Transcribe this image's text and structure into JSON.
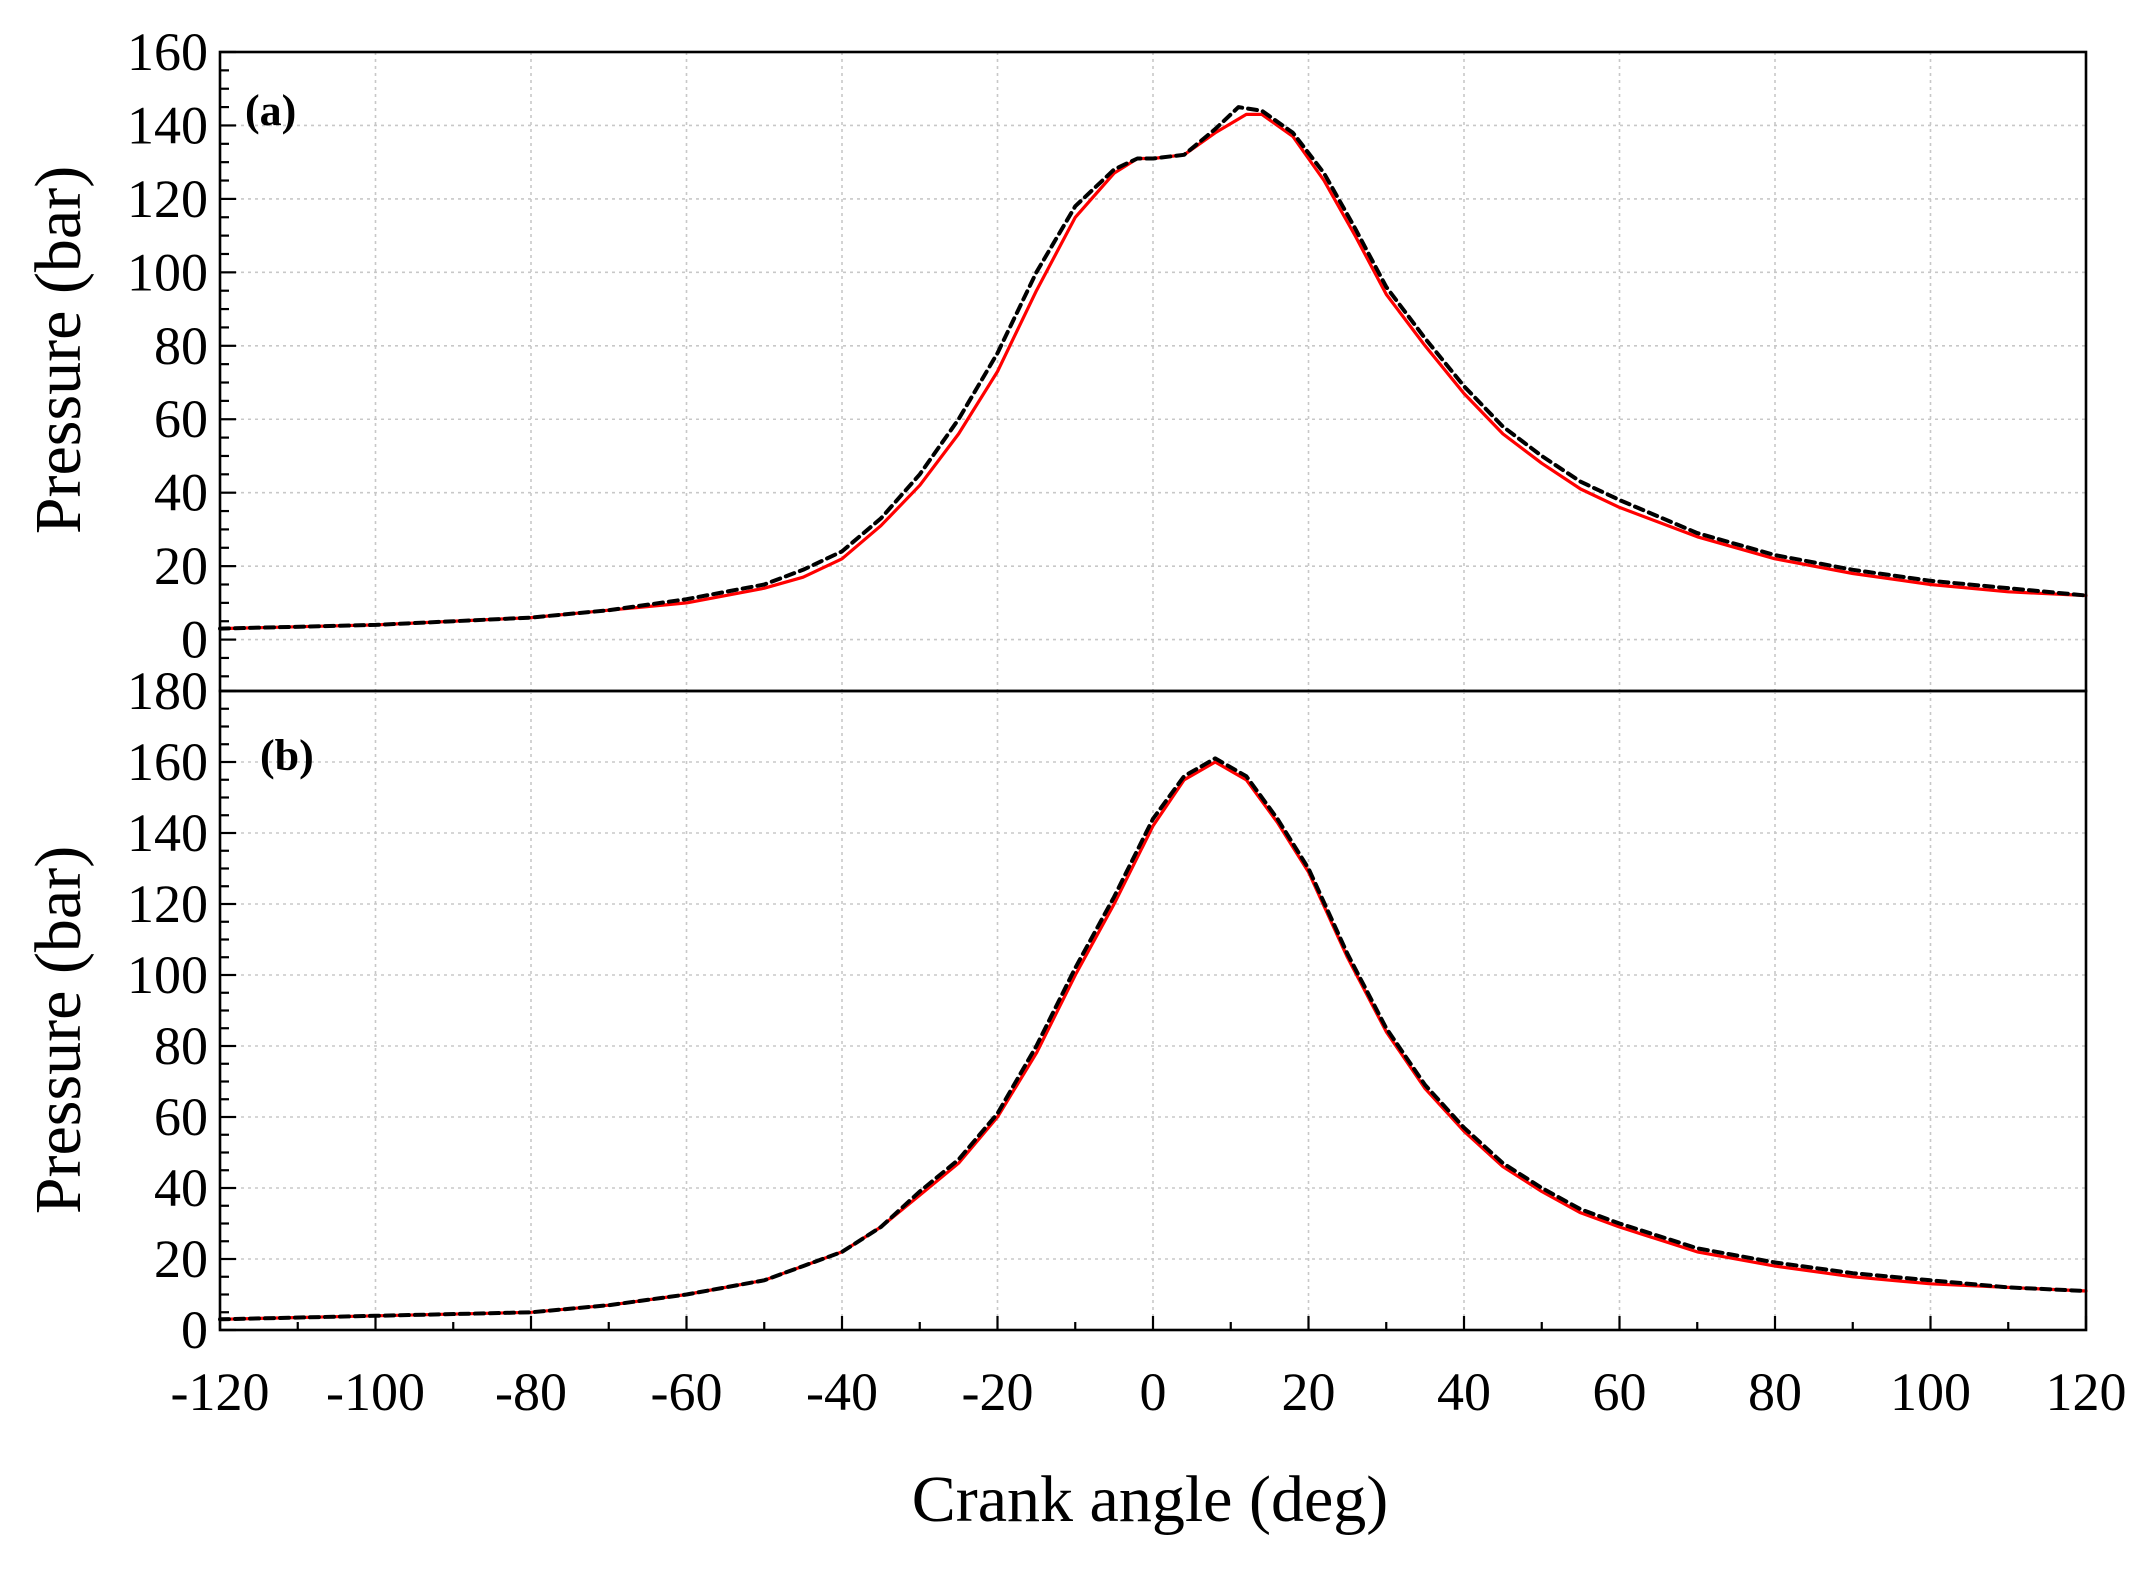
{
  "chart_data": [
    {
      "type": "line",
      "panel_label": "(a)",
      "ylabel": "Pressure (bar)",
      "xlim": [
        -120,
        120
      ],
      "ylim": [
        -14,
        160
      ],
      "yticks": [
        0,
        20,
        40,
        60,
        80,
        100,
        120,
        140,
        160
      ],
      "y_minor_step": 5,
      "grid": true,
      "series": [
        {
          "color": "#ff0000",
          "style": "solid",
          "x": [
            -120,
            -100,
            -80,
            -70,
            -60,
            -50,
            -45,
            -40,
            -35,
            -30,
            -25,
            -20,
            -15,
            -10,
            -5,
            -2,
            0,
            4,
            8,
            12,
            14,
            18,
            22,
            26,
            30,
            35,
            40,
            45,
            50,
            55,
            60,
            70,
            80,
            90,
            100,
            110,
            120
          ],
          "values": [
            3,
            4,
            6,
            8,
            10,
            14,
            17,
            22,
            31,
            42,
            56,
            73,
            95,
            115,
            127,
            131,
            131,
            132,
            138,
            143,
            143,
            137,
            125,
            110,
            94,
            80,
            67,
            56,
            48,
            41,
            36,
            28,
            22,
            18,
            15,
            13,
            12
          ]
        },
        {
          "color": "#000000",
          "style": "dashed",
          "x": [
            -120,
            -100,
            -80,
            -70,
            -60,
            -50,
            -45,
            -40,
            -35,
            -30,
            -25,
            -20,
            -15,
            -10,
            -5,
            -2,
            0,
            4,
            8,
            11,
            14,
            18,
            22,
            26,
            30,
            35,
            40,
            45,
            50,
            55,
            60,
            70,
            80,
            90,
            100,
            110,
            120
          ],
          "values": [
            3,
            4,
            6,
            8,
            11,
            15,
            19,
            24,
            33,
            45,
            60,
            78,
            100,
            118,
            128,
            131,
            131,
            132,
            139,
            145,
            144,
            138,
            127,
            112,
            96,
            82,
            69,
            58,
            50,
            43,
            38,
            29,
            23,
            19,
            16,
            14,
            12
          ]
        }
      ]
    },
    {
      "type": "line",
      "panel_label": "(b)",
      "ylabel": "Pressure (bar)",
      "xlabel": "Crank angle (deg)",
      "xlim": [
        -120,
        120
      ],
      "ylim": [
        0,
        180
      ],
      "xticks": [
        -120,
        -100,
        -80,
        -60,
        -40,
        -20,
        0,
        20,
        40,
        60,
        80,
        100,
        120
      ],
      "yticks": [
        0,
        20,
        40,
        60,
        80,
        100,
        120,
        140,
        160,
        180
      ],
      "y_minor_step": 5,
      "grid": true,
      "series": [
        {
          "color": "#ff0000",
          "style": "solid",
          "x": [
            -120,
            -100,
            -80,
            -70,
            -60,
            -50,
            -45,
            -40,
            -35,
            -30,
            -25,
            -20,
            -15,
            -10,
            -5,
            0,
            4,
            8,
            12,
            16,
            20,
            25,
            30,
            35,
            40,
            45,
            50,
            55,
            60,
            70,
            80,
            90,
            100,
            110,
            120
          ],
          "values": [
            3,
            4,
            5,
            7,
            10,
            14,
            18,
            22,
            29,
            38,
            47,
            60,
            78,
            100,
            120,
            142,
            155,
            160,
            155,
            143,
            129,
            105,
            84,
            68,
            56,
            46,
            39,
            33,
            29,
            22,
            18,
            15,
            13,
            12,
            11
          ]
        },
        {
          "color": "#000000",
          "style": "dashed",
          "x": [
            -120,
            -100,
            -80,
            -70,
            -60,
            -50,
            -45,
            -40,
            -35,
            -30,
            -25,
            -20,
            -15,
            -10,
            -5,
            0,
            4,
            8,
            12,
            16,
            20,
            25,
            30,
            35,
            40,
            45,
            50,
            55,
            60,
            70,
            80,
            90,
            100,
            110,
            120
          ],
          "values": [
            3,
            4,
            5,
            7,
            10,
            14,
            18,
            22,
            29,
            39,
            48,
            61,
            80,
            102,
            122,
            144,
            156,
            161,
            156,
            144,
            130,
            106,
            85,
            69,
            57,
            47,
            40,
            34,
            30,
            23,
            19,
            16,
            14,
            12,
            11
          ]
        }
      ]
    }
  ]
}
